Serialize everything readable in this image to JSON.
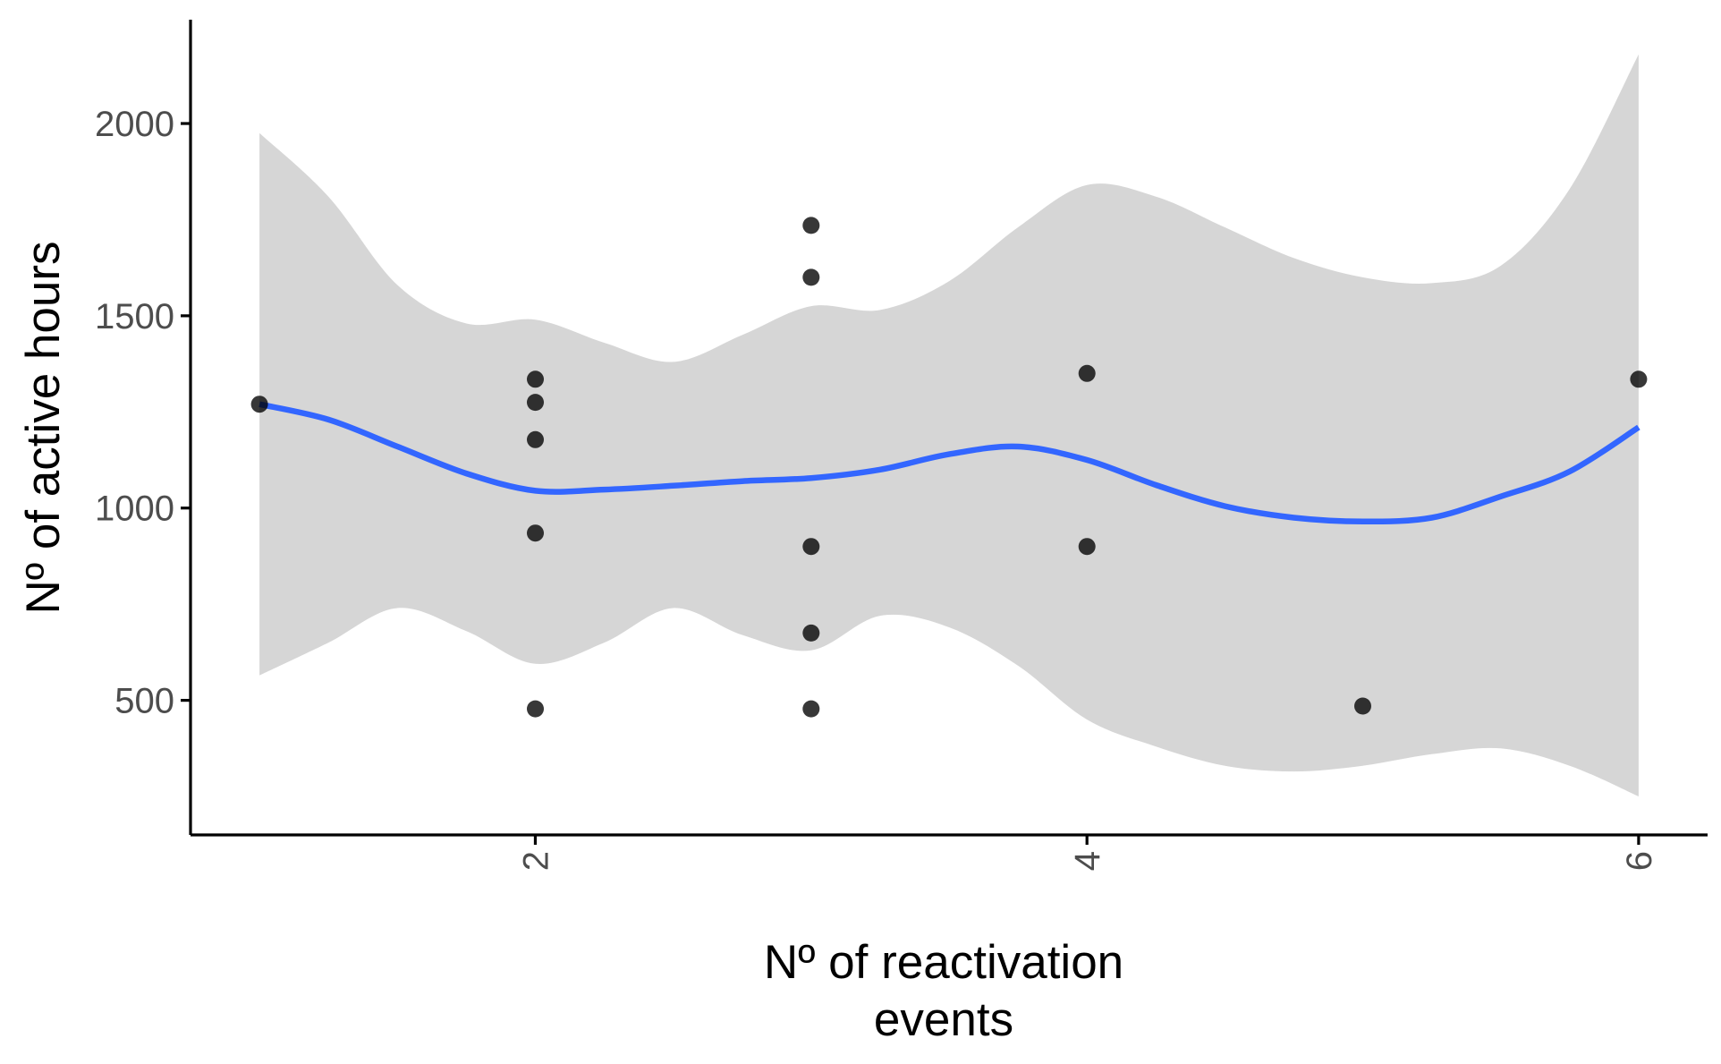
{
  "chart_data": {
    "type": "scatter",
    "xlabel": [
      "Nº of reactivation",
      "events"
    ],
    "ylabel": "Nº of active hours",
    "xlim": [
      0.75,
      6.25
    ],
    "ylim": [
      150,
      2270
    ],
    "x_ticks": [
      2,
      4,
      6
    ],
    "y_ticks": [
      500,
      1000,
      1500,
      2000
    ],
    "x_tick_labels": [
      "2",
      "4",
      "6"
    ],
    "y_tick_labels": [
      "500",
      "1000",
      "1500",
      "2000"
    ],
    "grid": false,
    "legend": "none",
    "points": [
      {
        "x": 1,
        "y": 1270
      },
      {
        "x": 2,
        "y": 1335
      },
      {
        "x": 2,
        "y": 1275
      },
      {
        "x": 2,
        "y": 1178
      },
      {
        "x": 2,
        "y": 935
      },
      {
        "x": 2,
        "y": 478
      },
      {
        "x": 3,
        "y": 1735
      },
      {
        "x": 3,
        "y": 1600
      },
      {
        "x": 3,
        "y": 900
      },
      {
        "x": 3,
        "y": 675
      },
      {
        "x": 3,
        "y": 478
      },
      {
        "x": 4,
        "y": 1350
      },
      {
        "x": 4,
        "y": 900
      },
      {
        "x": 5,
        "y": 485
      },
      {
        "x": 6,
        "y": 1335
      }
    ],
    "smooth": {
      "x": [
        1.0,
        1.25,
        1.5,
        1.75,
        2.0,
        2.25,
        2.5,
        2.75,
        3.0,
        3.25,
        3.5,
        3.75,
        4.0,
        4.25,
        4.5,
        4.75,
        5.0,
        5.25,
        5.5,
        5.75,
        6.0
      ],
      "y": [
        1270,
        1230,
        1160,
        1090,
        1045,
        1048,
        1058,
        1070,
        1078,
        1100,
        1140,
        1160,
        1125,
        1060,
        1005,
        975,
        965,
        975,
        1030,
        1095,
        1210
      ],
      "lower": [
        565,
        650,
        740,
        680,
        595,
        650,
        740,
        670,
        630,
        720,
        690,
        590,
        450,
        380,
        330,
        315,
        330,
        360,
        375,
        330,
        250
      ],
      "upper": [
        1975,
        1810,
        1580,
        1480,
        1490,
        1430,
        1380,
        1450,
        1525,
        1515,
        1590,
        1730,
        1840,
        1810,
        1730,
        1650,
        1600,
        1585,
        1630,
        1830,
        2180
      ]
    },
    "colors": {
      "points": "#000000",
      "line": "#3366FF",
      "band": "#D6D6D6",
      "axis": "#000000",
      "tick_label": "#4D4D4D"
    }
  }
}
